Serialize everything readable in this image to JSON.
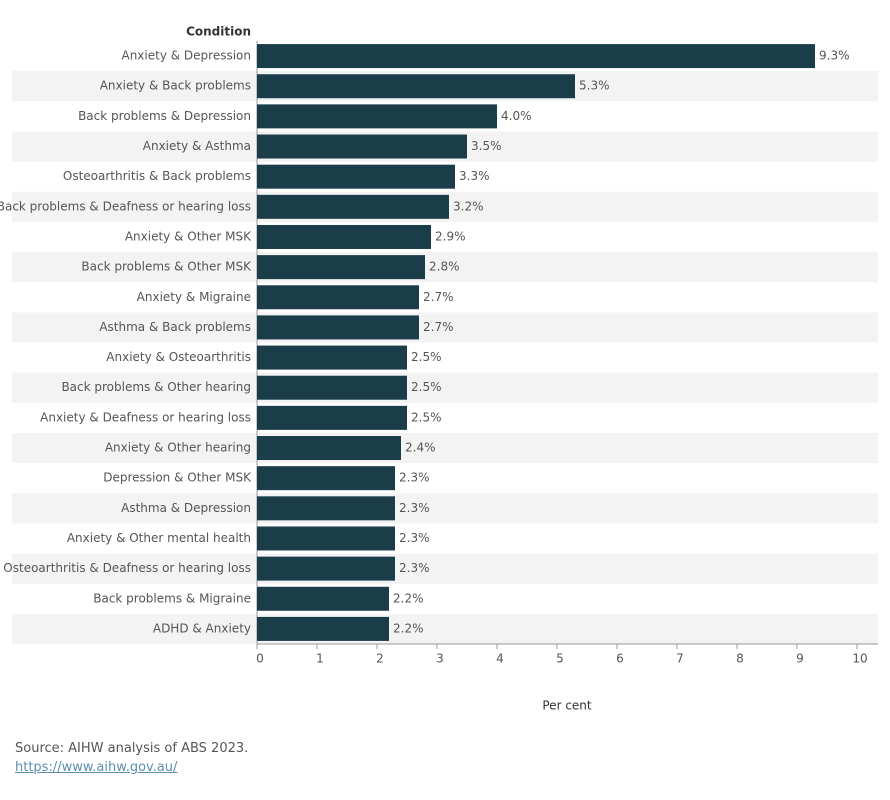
{
  "chart_data": {
    "type": "bar",
    "orientation": "horizontal",
    "y_label": "Condition",
    "x_label": "Per cent",
    "categories": [
      "Anxiety & Depression",
      "Anxiety & Back problems",
      "Back problems & Depression",
      "Anxiety & Asthma",
      "Osteoarthritis & Back problems",
      "Back problems & Deafness or hearing loss",
      "Anxiety & Other MSK",
      "Back problems & Other MSK",
      "Anxiety & Migraine",
      "Asthma & Back problems",
      "Anxiety & Osteoarthritis",
      "Back problems & Other hearing",
      "Anxiety & Deafness or hearing loss",
      "Anxiety & Other hearing",
      "Depression & Other MSK",
      "Asthma & Depression",
      "Anxiety & Other mental health",
      "Osteoarthritis & Deafness or hearing loss",
      "Back problems & Migraine",
      "ADHD & Anxiety"
    ],
    "values": [
      9.3,
      5.3,
      4.0,
      3.5,
      3.3,
      3.2,
      2.9,
      2.8,
      2.7,
      2.7,
      2.5,
      2.5,
      2.5,
      2.4,
      2.3,
      2.3,
      2.3,
      2.3,
      2.2,
      2.2
    ],
    "value_labels": [
      "9.3%",
      "5.3%",
      "4.0%",
      "3.5%",
      "3.3%",
      "3.2%",
      "2.9%",
      "2.8%",
      "2.7%",
      "2.7%",
      "2.5%",
      "2.5%",
      "2.5%",
      "2.4%",
      "2.3%",
      "2.3%",
      "2.3%",
      "2.3%",
      "2.2%",
      "2.2%"
    ],
    "color": "#1b3d4a",
    "xlim": [
      0,
      10
    ],
    "xticks": [
      0,
      1,
      2,
      3,
      4,
      5,
      6,
      7,
      8,
      9,
      10
    ]
  },
  "footer": {
    "source": "Source: AIHW analysis of ABS 2023.",
    "url": "https://www.aihw.gov.au/"
  }
}
